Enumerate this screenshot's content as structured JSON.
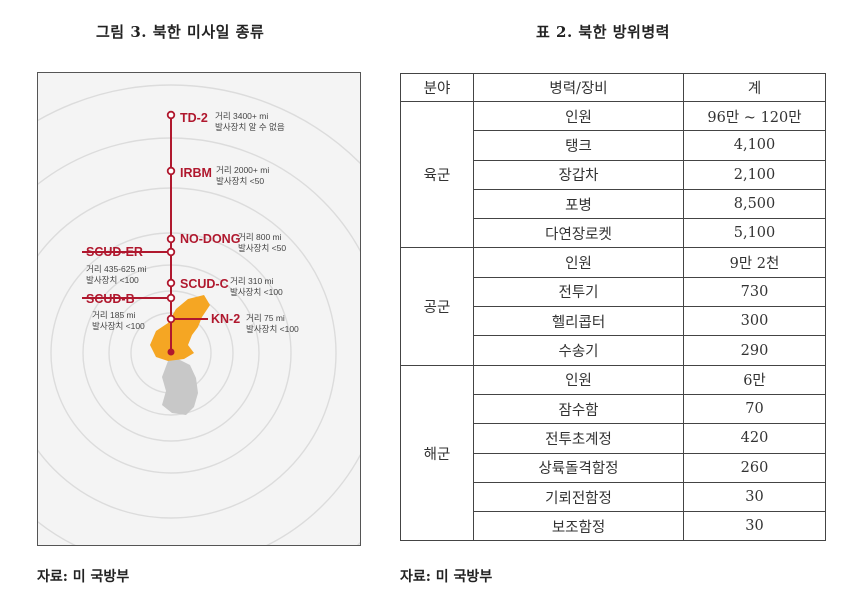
{
  "figure": {
    "caption": "그림 3. 북한 미사일 종류",
    "source": "자료: 미 국방부",
    "missiles": [
      {
        "name": "TD-2",
        "range_text": "거리  3400+ mi",
        "launchers_text": "발사장치  알 수 없음"
      },
      {
        "name": "IRBM",
        "range_text": "거리  2000+ mi",
        "launchers_text": "발사장치 <50"
      },
      {
        "name": "NO-DONG",
        "range_text": "거리  800 mi",
        "launchers_text": "발사장치 <50"
      },
      {
        "name": "SCUD-ER",
        "range_text": "거리  435-625 mi",
        "launchers_text": "발사장치 <100"
      },
      {
        "name": "SCUD-C",
        "range_text": "거리  310 mi",
        "launchers_text": "발사장치 <100"
      },
      {
        "name": "SCUD-B",
        "range_text": "거리  185 mi",
        "launchers_text": "발사장치 <100"
      },
      {
        "name": "KN-2",
        "range_text": "거리  75 mi",
        "launchers_text": "발사장치 <100"
      }
    ],
    "colors": {
      "accent": "#b0182e",
      "north_korea": "#f5a623",
      "south_korea": "#c8c8c8",
      "rings": "#dcdcdc"
    }
  },
  "table": {
    "caption": "표 2. 북한 방위병력",
    "source": "자료: 미 국방부",
    "headers": [
      "분야",
      "병력/장비",
      "계"
    ],
    "groups": [
      {
        "branch": "육군",
        "rows": [
          {
            "item": "인원",
            "value": "96만 ~ 120만"
          },
          {
            "item": "탱크",
            "value": "4,100"
          },
          {
            "item": "장갑차",
            "value": "2,100"
          },
          {
            "item": "포병",
            "value": "8,500"
          },
          {
            "item": "다연장로켓",
            "value": "5,100"
          }
        ]
      },
      {
        "branch": "공군",
        "rows": [
          {
            "item": "인원",
            "value": "9만 2천"
          },
          {
            "item": "전투기",
            "value": "730"
          },
          {
            "item": "헬리콥터",
            "value": "300"
          },
          {
            "item": "수송기",
            "value": "290"
          }
        ]
      },
      {
        "branch": "해군",
        "rows": [
          {
            "item": "인원",
            "value": "6만"
          },
          {
            "item": "잠수함",
            "value": "70"
          },
          {
            "item": "전투초계정",
            "value": "420"
          },
          {
            "item": "상륙돌격함정",
            "value": "260"
          },
          {
            "item": "기뢰전함정",
            "value": "30"
          },
          {
            "item": "보조함정",
            "value": "30"
          }
        ]
      }
    ]
  }
}
